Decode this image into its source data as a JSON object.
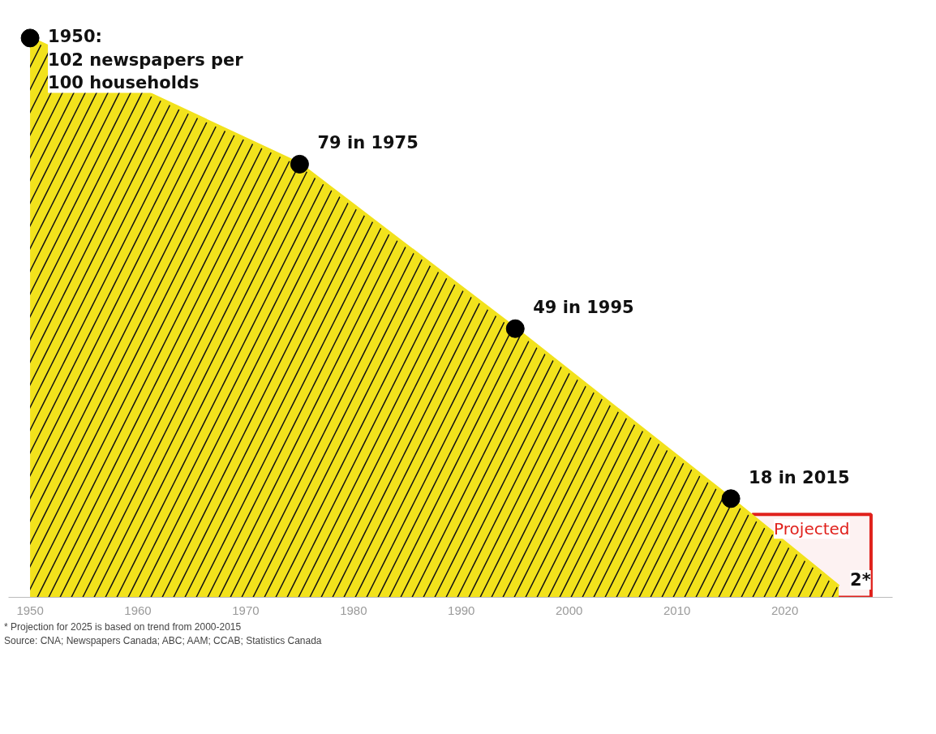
{
  "chart_data": {
    "type": "area",
    "series": [
      {
        "color": "#f2e21c",
        "x": [
          1950,
          1975,
          1995,
          2015,
          2025
        ],
        "values": [
          102,
          79,
          49,
          18,
          2
        ],
        "value_labels": [
          "1950:\n102 newspapers per\n100 households",
          "79 in 1975",
          "49 in 1995",
          "18 in 2015",
          "2*"
        ]
      },
      {
        "type": "scatter",
        "color": "#000000",
        "marker": "circle",
        "x": [
          1950,
          1975,
          1995,
          2015
        ],
        "values": [
          102,
          79,
          49,
          18
        ]
      }
    ],
    "xlim": [
      1948,
      2030
    ],
    "xticks": [
      1950,
      1960,
      1970,
      1980,
      1990,
      2000,
      2010,
      2020
    ],
    "tick_labels": "x",
    "grid": false,
    "bands": [
      {
        "axis": "x",
        "from": 2017,
        "to": 2028,
        "label": "Projected",
        "color": "#e0201b"
      }
    ],
    "annotations": [
      "* Projection for 2025 is based on trend from 2000-2015",
      "Source: CNA; Newspapers Canada; ABC; AAM; CCAB; Statistics Canada"
    ]
  }
}
